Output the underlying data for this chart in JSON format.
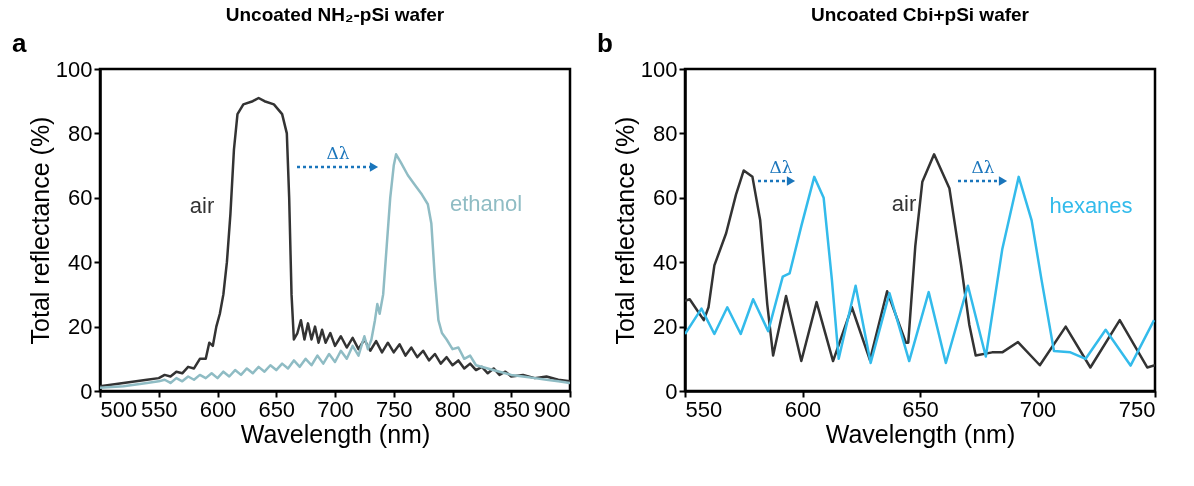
{
  "chart_data": [
    {
      "type": "line",
      "title": "Uncoated NH₂-pSi wafer",
      "xlabel": "Wavelength (nm)",
      "ylabel": "Total reflectance (%)",
      "xlim": [
        500,
        900
      ],
      "xticks": [
        500,
        550,
        600,
        650,
        700,
        750,
        800,
        850,
        900
      ],
      "ylim": [
        0,
        100
      ],
      "yticks": [
        0,
        20,
        40,
        60,
        80,
        100
      ],
      "grid": false,
      "series": [
        {
          "name": "air",
          "color": "#333333",
          "x": [
            500,
            520,
            540,
            550,
            555,
            560,
            565,
            570,
            575,
            580,
            585,
            590,
            593,
            596,
            599,
            602,
            605,
            608,
            611,
            614,
            617,
            622,
            630,
            635,
            640,
            648,
            655,
            659,
            661,
            663,
            665,
            668,
            671,
            674,
            677,
            680,
            683,
            686,
            689,
            692,
            696,
            700,
            705,
            710,
            715,
            720,
            725,
            730,
            735,
            740,
            745,
            750,
            755,
            760,
            765,
            770,
            775,
            780,
            785,
            790,
            795,
            800,
            805,
            810,
            815,
            820,
            825,
            830,
            835,
            840,
            845,
            850,
            860,
            870,
            880,
            890,
            900
          ],
          "values": [
            1.5,
            2.5,
            3.5,
            4,
            5,
            4.5,
            6,
            5.5,
            7.5,
            7,
            10,
            10,
            15,
            14,
            20,
            24,
            30,
            40,
            55,
            75,
            86,
            89,
            90,
            91,
            90,
            89,
            86,
            80,
            60,
            30,
            16,
            18,
            22,
            16,
            21,
            16,
            20,
            15,
            19,
            15,
            18,
            14,
            17,
            13.5,
            16.5,
            13,
            16,
            12.5,
            15.5,
            12,
            15,
            12,
            14.5,
            11,
            13.5,
            10.5,
            12.5,
            9.5,
            11.5,
            8.5,
            10.5,
            8,
            9.5,
            7,
            8.5,
            6.5,
            7.5,
            5.5,
            7,
            5,
            6,
            4.5,
            5,
            4,
            4.5,
            3.5,
            3
          ]
        },
        {
          "name": "ethanol",
          "color": "#8fbcc4",
          "x": [
            500,
            520,
            540,
            550,
            555,
            560,
            565,
            570,
            575,
            580,
            585,
            590,
            595,
            600,
            605,
            610,
            615,
            620,
            625,
            630,
            635,
            640,
            645,
            650,
            655,
            660,
            665,
            670,
            675,
            680,
            685,
            690,
            695,
            700,
            705,
            710,
            715,
            720,
            725,
            728,
            731,
            734,
            736,
            738,
            741,
            744,
            747,
            750,
            752,
            756,
            762,
            768,
            774,
            779,
            782,
            785,
            788,
            791,
            795,
            800,
            805,
            810,
            815,
            820,
            830,
            840,
            850,
            860,
            870,
            880,
            890,
            900
          ],
          "values": [
            1,
            1.5,
            2.5,
            3,
            3.5,
            2.5,
            4,
            3,
            4.5,
            3.5,
            5,
            4,
            5.5,
            4,
            6,
            4.5,
            6.5,
            5,
            7,
            5.5,
            7.5,
            6,
            8,
            6.5,
            8.5,
            7,
            9.5,
            7.5,
            10,
            8,
            11,
            8.5,
            11.5,
            9,
            12.5,
            10,
            14,
            11,
            17,
            13,
            16,
            22,
            27,
            24,
            30,
            45,
            60,
            70,
            73.5,
            71,
            67,
            64,
            61,
            58,
            52,
            35,
            22,
            18,
            16,
            13,
            13.5,
            10,
            11,
            8,
            7,
            6,
            5,
            4.5,
            4,
            3.5,
            3,
            2.5
          ]
        }
      ],
      "annotations": [
        "a",
        "Δλ"
      ]
    },
    {
      "type": "line",
      "title": "Uncoated Cbi+pSi wafer",
      "xlabel": "Wavelength (nm)",
      "ylabel": "Total reflectance (%)",
      "xlim": [
        550,
        750
      ],
      "xticks": [
        550,
        600,
        650,
        700,
        750
      ],
      "ylim": [
        0,
        100
      ],
      "yticks": [
        0,
        20,
        40,
        60,
        80,
        100
      ],
      "grid": false,
      "series": [
        {
          "name": "air",
          "color": "#333333",
          "x": [
            550,
            552,
            558,
            560,
            562.5,
            567.5,
            571.7,
            575,
            578.7,
            582,
            585,
            587.5,
            593,
            599.5,
            606,
            613,
            621,
            628.7,
            636,
            644,
            645,
            648,
            651,
            656,
            662.5,
            667.5,
            671,
            673.7,
            680.7,
            685,
            691.7,
            701,
            712,
            722.5,
            735,
            746.7,
            750
          ],
          "values": [
            28,
            28.5,
            22,
            26,
            39,
            49,
            61,
            68.5,
            66.5,
            53,
            27,
            11,
            29.5,
            9.3,
            27.6,
            9.3,
            26,
            9.6,
            31,
            15,
            15,
            45,
            65,
            73.5,
            63,
            39,
            20.5,
            11,
            12,
            12,
            15.2,
            8,
            20,
            7.3,
            22,
            7.3,
            8
          ]
        },
        {
          "name": "hexanes",
          "color": "#33bbeb",
          "x": [
            550,
            557,
            562.5,
            568,
            573.7,
            579,
            585.4,
            591.6,
            594.5,
            599.6,
            605,
            609,
            612.5,
            615.4,
            622.6,
            629,
            637,
            645.4,
            653.7,
            661,
            670.4,
            678,
            685,
            692,
            697.5,
            701.7,
            707,
            714,
            720.5,
            729,
            739.6,
            749.6
          ],
          "values": [
            17.7,
            25.6,
            17.7,
            26,
            17.7,
            28.5,
            18.6,
            35.5,
            36.5,
            51.5,
            66.5,
            60,
            34.6,
            10,
            32.7,
            8.7,
            30.4,
            9.3,
            30.7,
            8.7,
            32.7,
            10.7,
            44,
            66.5,
            53,
            34.6,
            12.4,
            12,
            10,
            19,
            7.9,
            22
          ]
        }
      ],
      "annotations": [
        "b",
        "Δλ",
        "Δλ"
      ]
    }
  ]
}
